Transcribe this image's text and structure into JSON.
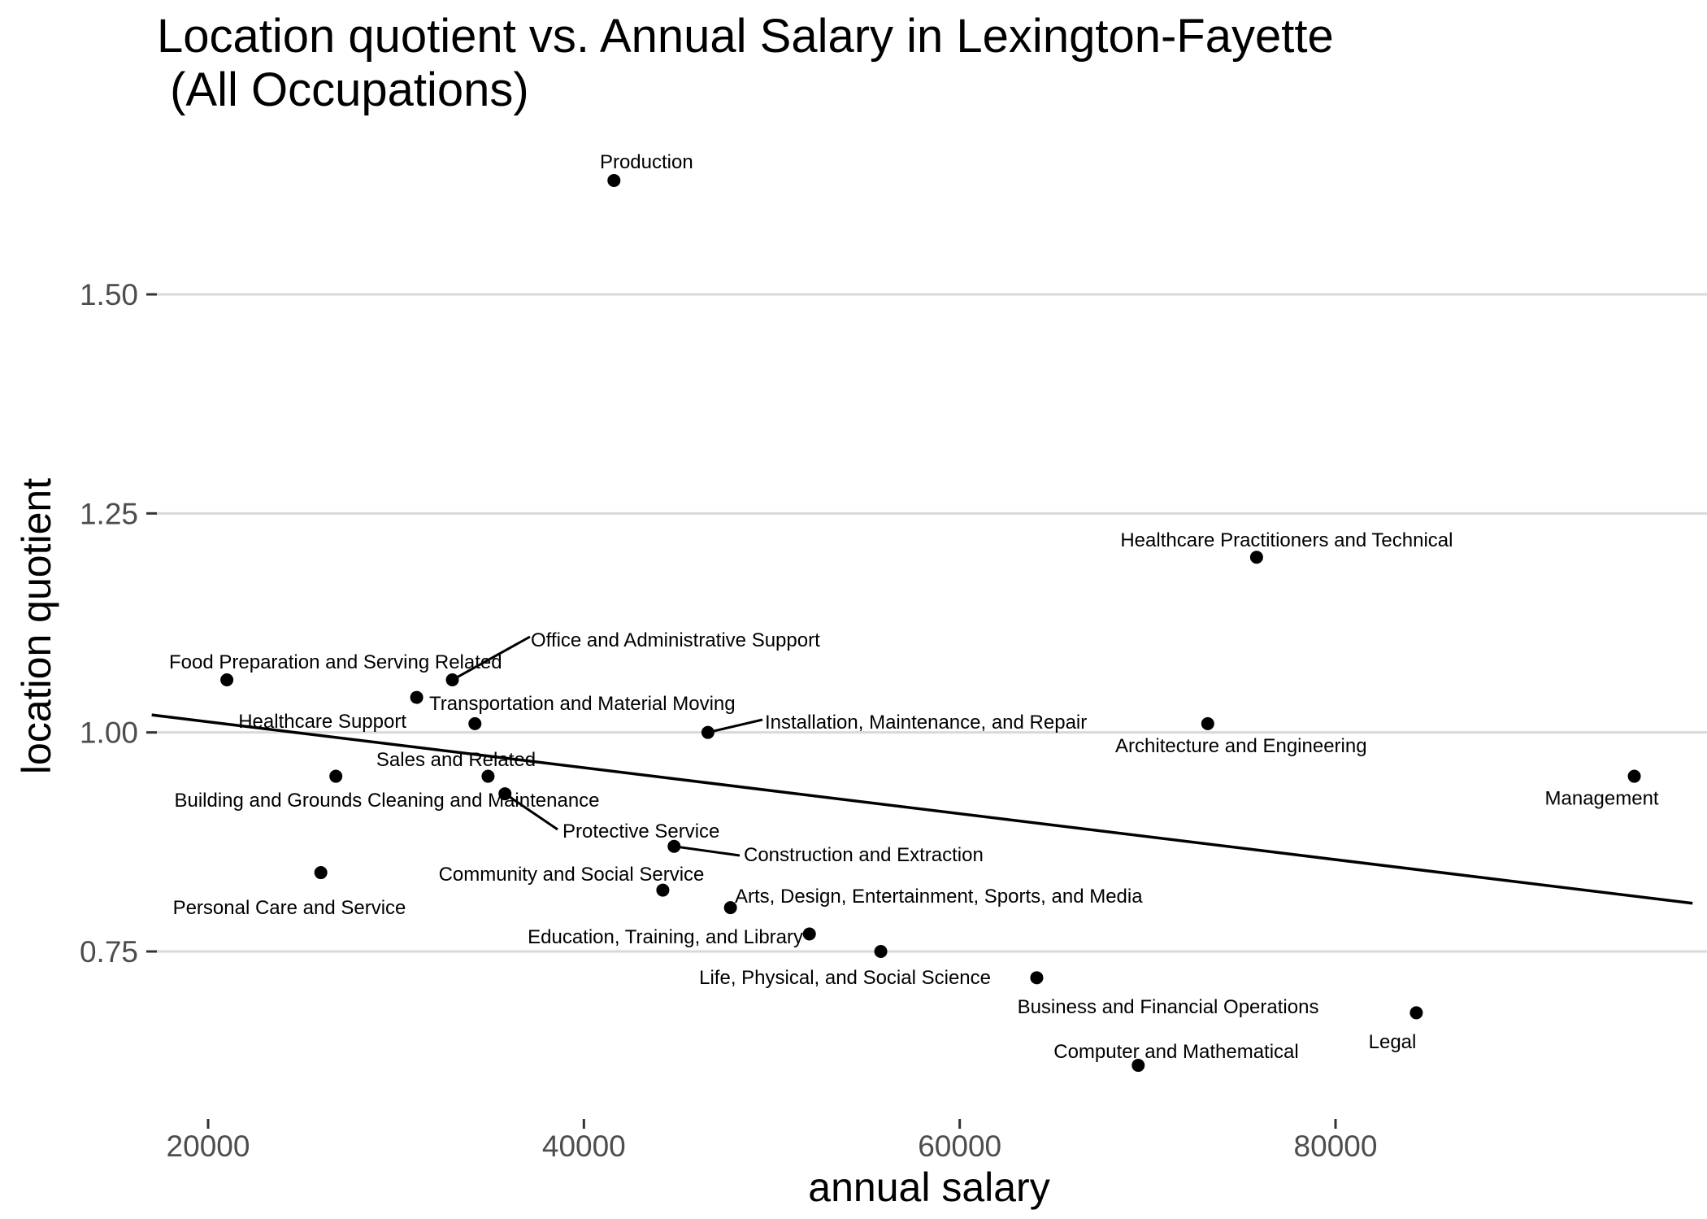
{
  "chart_data": {
    "type": "scatter",
    "title": "Location quotient vs. Annual Salary in Lexington-Fayette",
    "subtitle": " (All Occupations)",
    "xlabel": "annual salary",
    "ylabel": "location quotient",
    "xlim": [
      17000,
      99000
    ],
    "ylim": [
      0.605,
      1.7
    ],
    "x_ticks": [
      20000,
      40000,
      60000,
      80000
    ],
    "x_tick_labels": [
      "20000",
      "40000",
      "60000",
      "80000"
    ],
    "y_ticks": [
      0.75,
      1.0,
      1.25,
      1.5
    ],
    "y_tick_labels": [
      "0.75",
      "1.00",
      "1.25",
      "1.50"
    ],
    "grid": "horizontal major lines",
    "legend": "none",
    "point_color": "#000000",
    "grid_color": "#d9d9d9",
    "points": [
      {
        "label": "Production",
        "x": 41600,
        "y": 1.63
      },
      {
        "label": "Healthcare Practitioners and Technical",
        "x": 75800,
        "y": 1.2
      },
      {
        "label": "Office and Administrative Support",
        "x": 33000,
        "y": 1.06
      },
      {
        "label": "Food Preparation and Serving Related",
        "x": 21000,
        "y": 1.06
      },
      {
        "label": "Transportation and Material Moving",
        "x": 31100,
        "y": 1.04
      },
      {
        "label": "Healthcare Support",
        "x": 34200,
        "y": 1.01
      },
      {
        "label": "Installation, Maintenance, and Repair",
        "x": 46600,
        "y": 1.0
      },
      {
        "label": "Architecture and Engineering",
        "x": 73200,
        "y": 1.01
      },
      {
        "label": "Sales and Related",
        "x": 34900,
        "y": 0.95
      },
      {
        "label": "Building and Grounds Cleaning and Maintenance",
        "x": 26800,
        "y": 0.95
      },
      {
        "label": "Management",
        "x": 95900,
        "y": 0.95
      },
      {
        "label": "Protective Service",
        "x": 35800,
        "y": 0.93
      },
      {
        "label": "Construction and Extraction",
        "x": 44800,
        "y": 0.87
      },
      {
        "label": "Community and Social Service",
        "x": 44200,
        "y": 0.82
      },
      {
        "label": "Personal Care and Service",
        "x": 26000,
        "y": 0.84
      },
      {
        "label": "Arts, Design, Entertainment, Sports, and Media",
        "x": 47800,
        "y": 0.8
      },
      {
        "label": "Education, Training, and Library",
        "x": 52000,
        "y": 0.77
      },
      {
        "label": "Life, Physical, and Social Science",
        "x": 55800,
        "y": 0.75
      },
      {
        "label": "Business and Financial Operations",
        "x": 64100,
        "y": 0.72
      },
      {
        "label": "Legal",
        "x": 84300,
        "y": 0.68
      },
      {
        "label": "Computer and Mathematical",
        "x": 69500,
        "y": 0.62
      }
    ],
    "trend_line": {
      "x": [
        17000,
        99000
      ],
      "y": [
        1.02,
        0.805
      ]
    }
  }
}
